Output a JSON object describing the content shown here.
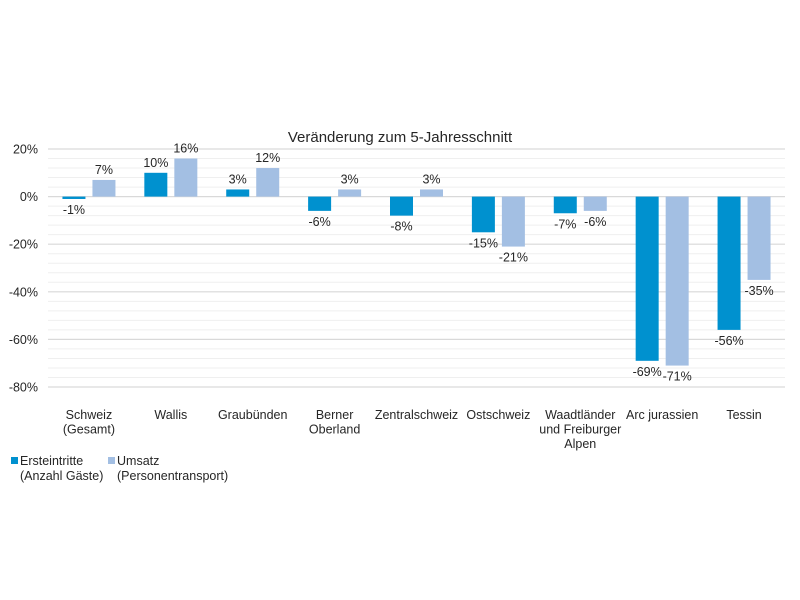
{
  "chart_data": {
    "type": "bar",
    "title": "Veränderung zum 5-Jahresschnitt",
    "xlabel": "",
    "ylabel": "",
    "ylim": [
      -80,
      20
    ],
    "y_major_step": 20,
    "y_minor_step": 4,
    "grid": true,
    "legend_position": "bottom-left",
    "yticks": [
      "20%",
      "0%",
      "-20%",
      "-40%",
      "-60%",
      "-80%"
    ],
    "ytick_values": [
      20,
      0,
      -20,
      -40,
      -60,
      -80
    ],
    "categories": [
      [
        "Schweiz",
        "(Gesamt)"
      ],
      [
        "Wallis"
      ],
      [
        "Graubünden"
      ],
      [
        "Berner",
        "Oberland"
      ],
      [
        "Zentralschweiz"
      ],
      [
        "Ostschweiz"
      ],
      [
        "Waadtländer",
        "und Freiburger",
        "Alpen"
      ],
      [
        "Arc jurassien"
      ],
      [
        "Tessin"
      ]
    ],
    "series": [
      {
        "name": "Ersteintritte (Anzahl Gäste)",
        "legend_lines": [
          "Ersteintritte",
          "(Anzahl Gäste)"
        ],
        "color": "#0091cf",
        "values": [
          -1,
          10,
          3,
          -6,
          -8,
          -15,
          -7,
          -69,
          -56
        ],
        "labels": [
          "-1%",
          "10%",
          "3%",
          "-6%",
          "-8%",
          "-15%",
          "-7%",
          "-69%",
          "-56%"
        ]
      },
      {
        "name": "Umsatz (Personentransport)",
        "legend_lines": [
          "Umsatz",
          "(Personentransport)"
        ],
        "color": "#a3bfe3",
        "values": [
          7,
          16,
          12,
          3,
          3,
          -21,
          -6,
          -71,
          -35
        ],
        "labels": [
          "7%",
          "16%",
          "12%",
          "3%",
          "3%",
          "-21%",
          "-6%",
          "-71%",
          "-35%"
        ]
      }
    ],
    "colors": {
      "major_grid": "#d9d9d9",
      "minor_grid": "#efefef",
      "text": "#262626"
    }
  }
}
